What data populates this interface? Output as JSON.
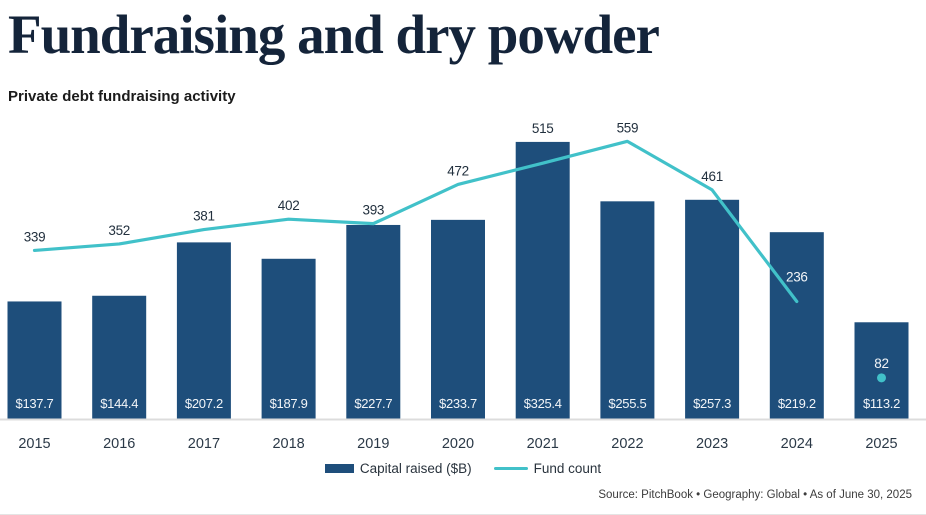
{
  "header": {
    "title": "Fundraising and dry powder",
    "subtitle": "Private debt fundraising activity"
  },
  "legend": [
    {
      "label": "Capital raised ($B)",
      "swatch": "bar-swatch",
      "color": "#1e4e7b"
    },
    {
      "label": "Fund count",
      "swatch": "line-swatch",
      "color": "#41c1c9"
    }
  ],
  "footer": {
    "source": "Source: PitchBook  •  Geography: Global  •  As of June 30, 2025"
  },
  "chart_data": {
    "type": "combo-bar-line",
    "title": "Fundraising and dry powder",
    "subtitle": "Private debt fundraising activity",
    "categories": [
      "2015",
      "2016",
      "2017",
      "2018",
      "2019",
      "2020",
      "2021",
      "2022",
      "2023",
      "2024",
      "2025"
    ],
    "series": [
      {
        "name": "Capital raised ($B)",
        "type": "bar",
        "color": "#1e4e7b",
        "values": [
          137.7,
          144.4,
          207.2,
          187.9,
          227.7,
          233.7,
          325.4,
          255.5,
          257.3,
          219.2,
          113.2
        ],
        "labels": [
          "$137.7",
          "$144.4",
          "$207.2",
          "$187.9",
          "$227.7",
          "$233.7",
          "$325.4",
          "$255.5",
          "$257.3",
          "$219.2",
          "$113.2"
        ],
        "axis_max": 350
      },
      {
        "name": "Fund count",
        "type": "line",
        "color": "#41c1c9",
        "values": [
          339,
          352,
          381,
          402,
          393,
          472,
          515,
          559,
          461,
          236,
          82
        ],
        "labels": [
          "339",
          "352",
          "381",
          "402",
          "393",
          "472",
          "515",
          "559",
          "461",
          "236",
          "82"
        ],
        "axis_max": 600,
        "line_index_range": [
          0,
          9
        ],
        "isolated_marker_index": 10
      }
    ],
    "gridlines": false,
    "legend_position": "bottom-center",
    "baseline_color": "#dcdcdc",
    "label_dark_color": "#22303e",
    "label_light_color": "#f2f5f8",
    "year_label_color": "#2b3947"
  }
}
